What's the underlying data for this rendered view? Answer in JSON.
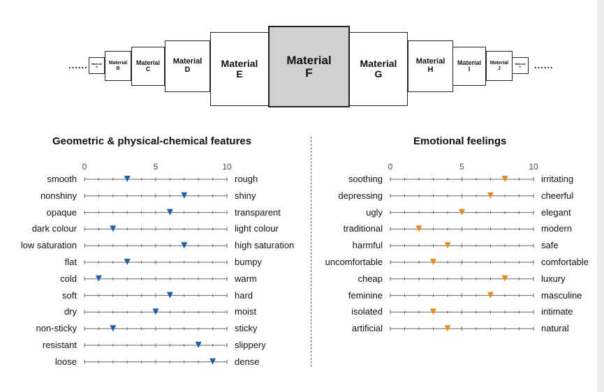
{
  "materials": [
    {
      "name": "Material",
      "letter": "A"
    },
    {
      "name": "Material",
      "letter": "B"
    },
    {
      "name": "Material",
      "letter": "C"
    },
    {
      "name": "Material",
      "letter": "D"
    },
    {
      "name": "Material",
      "letter": "E"
    },
    {
      "name": "Material",
      "letter": "F"
    },
    {
      "name": "Material",
      "letter": "G"
    },
    {
      "name": "Material",
      "letter": "H"
    },
    {
      "name": "Material",
      "letter": "I"
    },
    {
      "name": "Material",
      "letter": "J"
    },
    {
      "name": "Material",
      "letter": "K"
    }
  ],
  "selected_material": "F",
  "ellipsis": "......",
  "sections": {
    "geometric": {
      "title": "Geometric & physical-chemical features",
      "marker_color": "#1f5fa8",
      "scale_min": 0,
      "scale_max": 10,
      "tick_labels": [
        "0",
        "5",
        "10"
      ],
      "rows": [
        {
          "left": "smooth",
          "right": "rough",
          "value": 3
        },
        {
          "left": "nonshiny",
          "right": "shiny",
          "value": 7
        },
        {
          "left": "opaque",
          "right": "transparent",
          "value": 6
        },
        {
          "left": "dark colour",
          "right": "light colour",
          "value": 2
        },
        {
          "left": "low saturation",
          "right": "high saturation",
          "value": 7
        },
        {
          "left": "flat",
          "right": "bumpy",
          "value": 3
        },
        {
          "left": "cold",
          "right": "warm",
          "value": 1
        },
        {
          "left": "soft",
          "right": "hard",
          "value": 6
        },
        {
          "left": "dry",
          "right": "moist",
          "value": 5
        },
        {
          "left": "non-sticky",
          "right": "sticky",
          "value": 2
        },
        {
          "left": "resistant",
          "right": "slippery",
          "value": 8
        },
        {
          "left": "loose",
          "right": "dense",
          "value": 9
        }
      ]
    },
    "emotional": {
      "title": "Emotional feelings",
      "marker_color": "#e58a1f",
      "scale_min": 0,
      "scale_max": 10,
      "tick_labels": [
        "0",
        "5",
        "10"
      ],
      "rows": [
        {
          "left": "soothing",
          "right": "irritating",
          "value": 8
        },
        {
          "left": "depressing",
          "right": "cheerful",
          "value": 7
        },
        {
          "left": "ugly",
          "right": "elegant",
          "value": 5
        },
        {
          "left": "traditional",
          "right": "modern",
          "value": 2
        },
        {
          "left": "harmful",
          "right": "safe",
          "value": 4
        },
        {
          "left": "uncomfortable",
          "right": "comfortable",
          "value": 3
        },
        {
          "left": "cheap",
          "right": "luxury",
          "value": 8
        },
        {
          "left": "feminine",
          "right": "masculine",
          "value": 7
        },
        {
          "left": "isolated",
          "right": "intimate",
          "value": 3
        },
        {
          "left": "artificial",
          "right": "natural",
          "value": 4
        }
      ]
    }
  }
}
